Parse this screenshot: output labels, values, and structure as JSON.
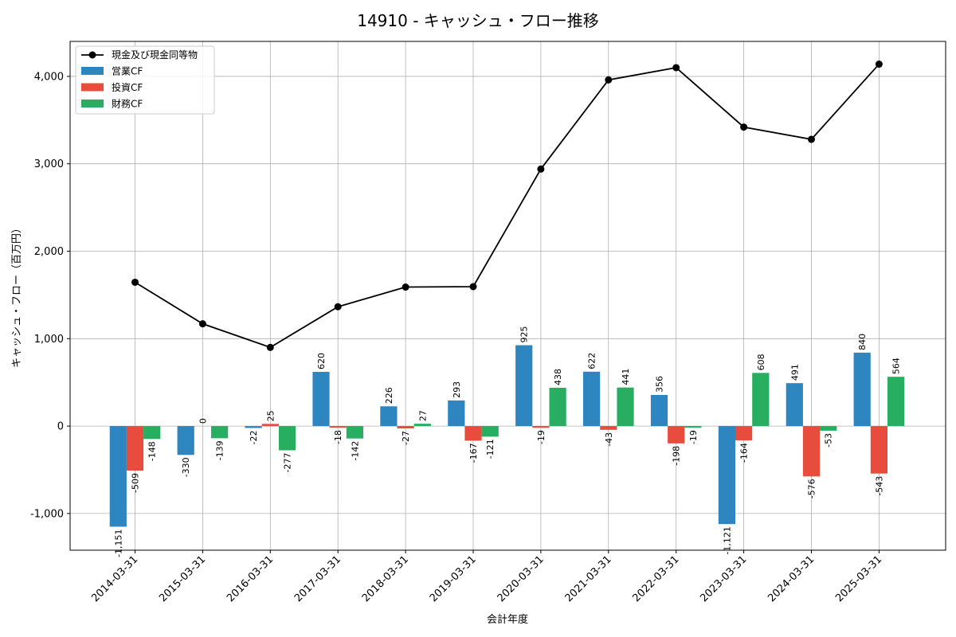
{
  "chart_data": {
    "type": "bar",
    "title": "14910 - キャッシュ・フロー推移",
    "xlabel": "会計年度",
    "ylabel": "キャッシュ・フロー（百万円）",
    "categories": [
      "2014-03-31",
      "2015-03-31",
      "2016-03-31",
      "2017-03-31",
      "2018-03-31",
      "2019-03-31",
      "2020-03-31",
      "2021-03-31",
      "2022-03-31",
      "2023-03-31",
      "2024-03-31",
      "2025-03-31"
    ],
    "ylim": [
      -1420,
      4400
    ],
    "yticks": [
      -1000,
      0,
      1000,
      2000,
      3000,
      4000
    ],
    "ytick_labels": [
      "-1,000",
      "0",
      "1,000",
      "2,000",
      "3,000",
      "4,000"
    ],
    "grid": true,
    "legend_position": "top-left",
    "bar_series": [
      {
        "name": "営業CF",
        "color": "#2e86c1",
        "values": [
          -1151,
          -330,
          -22,
          620,
          226,
          293,
          925,
          622,
          356,
          -1121,
          491,
          840
        ],
        "labels": [
          "-1,151",
          "-330",
          "-22",
          "620",
          "226",
          "293",
          "925",
          "622",
          "356",
          "-1,121",
          "491",
          "840"
        ]
      },
      {
        "name": "投資CF",
        "color": "#e74c3c",
        "values": [
          -509,
          0,
          25,
          -18,
          -27,
          -167,
          -19,
          -43,
          -198,
          -164,
          -576,
          -543
        ],
        "labels": [
          "-509",
          "0",
          "25",
          "-18",
          "-27",
          "-167",
          "-19",
          "-43",
          "-198",
          "-164",
          "-576",
          "-543"
        ]
      },
      {
        "name": "財務CF",
        "color": "#27ae60",
        "values": [
          -148,
          -139,
          -277,
          -142,
          27,
          -121,
          438,
          441,
          -19,
          608,
          -53,
          564
        ],
        "labels": [
          "-148",
          "-139",
          "-277",
          "-142",
          "27",
          "-121",
          "438",
          "441",
          "-19",
          "608",
          "-53",
          "564"
        ]
      }
    ],
    "line_series": {
      "name": "現金及び現金同等物",
      "color": "#000000",
      "values": [
        1645,
        1170,
        900,
        1365,
        1590,
        1595,
        2940,
        3960,
        4100,
        3420,
        3280,
        4140
      ]
    }
  }
}
